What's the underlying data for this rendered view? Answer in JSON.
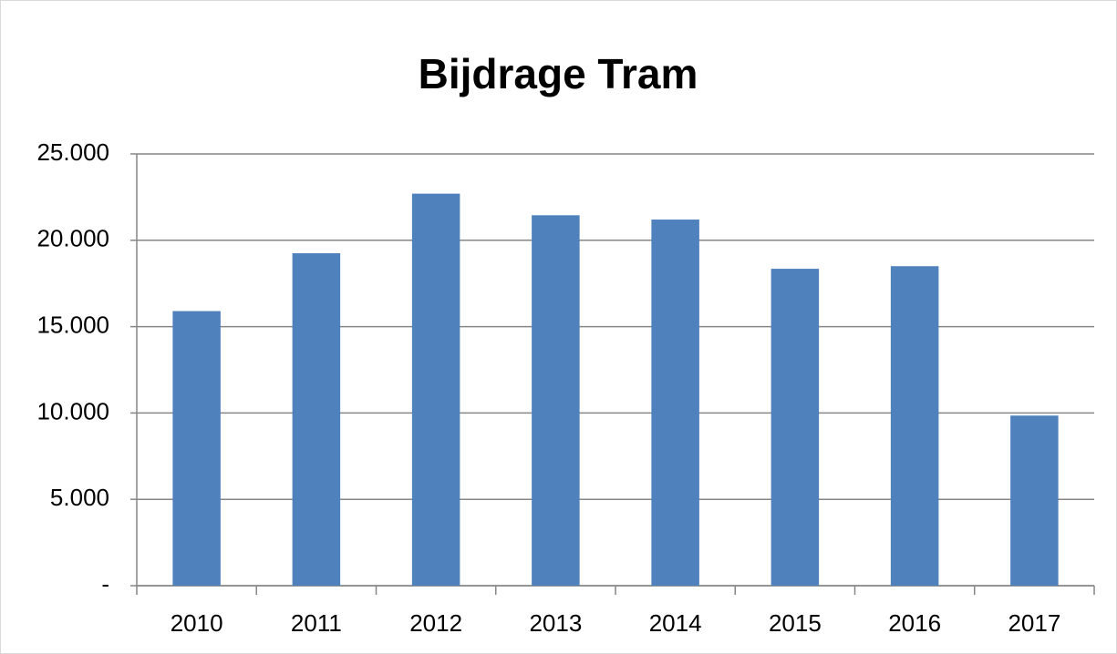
{
  "chart_data": {
    "type": "bar",
    "title": "Bijdrage Tram",
    "categories": [
      "2010",
      "2011",
      "2012",
      "2013",
      "2014",
      "2015",
      "2016",
      "2017"
    ],
    "values": [
      15900,
      19250,
      22700,
      21450,
      21200,
      18350,
      18500,
      9850
    ],
    "color": "#4f81bd",
    "ylim": [
      0,
      25000
    ],
    "yticks": [
      {
        "value": 0,
        "label": "-"
      },
      {
        "value": 5000,
        "label": "5.000"
      },
      {
        "value": 10000,
        "label": "10.000"
      },
      {
        "value": 15000,
        "label": "15.000"
      },
      {
        "value": 20000,
        "label": "20.000"
      },
      {
        "value": 25000,
        "label": "25.000"
      }
    ],
    "grid": true
  }
}
